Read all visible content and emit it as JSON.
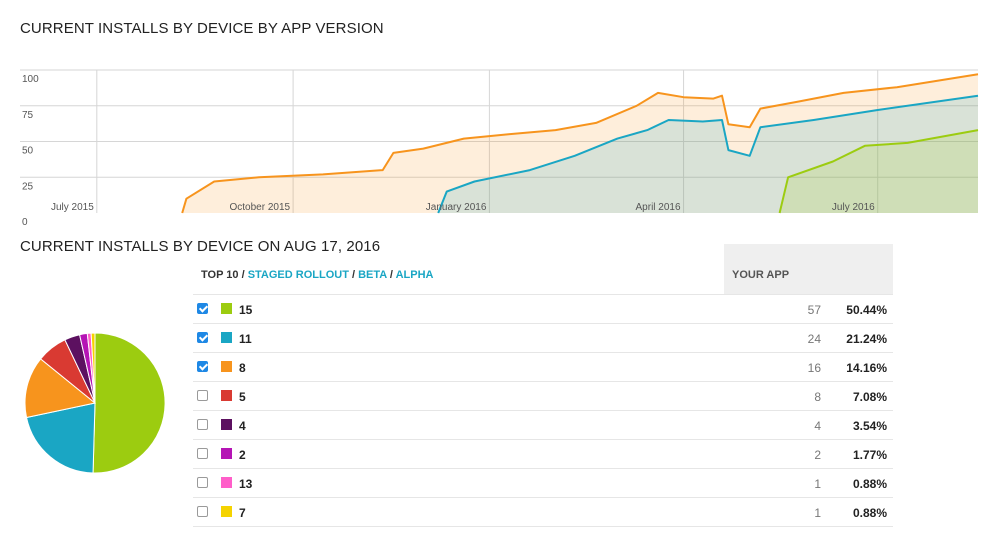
{
  "titles": {
    "chart": "CURRENT INSTALLS BY DEVICE BY APP VERSION",
    "snapshot": "CURRENT INSTALLS BY DEVICE ON AUG 17, 2016"
  },
  "colors": {
    "v15": "#9ccc10",
    "v11": "#1aa6c4",
    "v8": "#f7941d",
    "v5": "#d93a32",
    "v4": "#5c1060",
    "v2": "#b514b5",
    "v13": "#ff5ec9",
    "v7": "#f5d300"
  },
  "chart_data": [
    {
      "type": "area",
      "title": "CURRENT INSTALLS BY DEVICE BY APP VERSION",
      "stacked": false,
      "ylim": [
        0,
        100
      ],
      "yticks": [
        "100",
        "75",
        "50",
        "25",
        "0"
      ],
      "yticks_values": [
        100,
        75,
        50,
        25,
        0
      ],
      "xticks": [
        "July 2015",
        "October 2015",
        "January 2016",
        "April 2016",
        "July 2016"
      ],
      "x_range": [
        "2015-05-26",
        "2016-08-17"
      ],
      "xticks_dates": [
        "2015-07-01",
        "2015-10-01",
        "2016-01-01",
        "2016-04-01",
        "2016-07-01"
      ],
      "series": [
        {
          "name": "8",
          "color_key": "v8",
          "points": [
            [
              "2015-08-10",
              0
            ],
            [
              "2015-08-12",
              10
            ],
            [
              "2015-08-25",
              22
            ],
            [
              "2015-09-15",
              25
            ],
            [
              "2015-10-15",
              27
            ],
            [
              "2015-11-12",
              30
            ],
            [
              "2015-11-17",
              42
            ],
            [
              "2015-12-01",
              45
            ],
            [
              "2015-12-20",
              52
            ],
            [
              "2016-01-10",
              55
            ],
            [
              "2016-02-01",
              58
            ],
            [
              "2016-02-20",
              63
            ],
            [
              "2016-03-10",
              75
            ],
            [
              "2016-03-20",
              84
            ],
            [
              "2016-04-01",
              81
            ],
            [
              "2016-04-15",
              80
            ],
            [
              "2016-04-19",
              82
            ],
            [
              "2016-04-22",
              62
            ],
            [
              "2016-05-02",
              60
            ],
            [
              "2016-05-07",
              73
            ],
            [
              "2016-05-25",
              78
            ],
            [
              "2016-06-15",
              84
            ],
            [
              "2016-07-10",
              88
            ],
            [
              "2016-08-17",
              97
            ]
          ]
        },
        {
          "name": "11",
          "color_key": "v11",
          "points": [
            [
              "2015-12-08",
              0
            ],
            [
              "2015-12-12",
              15
            ],
            [
              "2015-12-25",
              22
            ],
            [
              "2016-01-20",
              30
            ],
            [
              "2016-02-10",
              40
            ],
            [
              "2016-03-01",
              52
            ],
            [
              "2016-03-15",
              58
            ],
            [
              "2016-03-25",
              65
            ],
            [
              "2016-04-10",
              64
            ],
            [
              "2016-04-19",
              65
            ],
            [
              "2016-04-22",
              44
            ],
            [
              "2016-05-02",
              40
            ],
            [
              "2016-05-07",
              60
            ],
            [
              "2016-06-01",
              65
            ],
            [
              "2016-07-01",
              72
            ],
            [
              "2016-08-17",
              82
            ]
          ]
        },
        {
          "name": "15",
          "color_key": "v15",
          "points": [
            [
              "2016-05-16",
              0
            ],
            [
              "2016-05-20",
              25
            ],
            [
              "2016-06-10",
              36
            ],
            [
              "2016-06-25",
              47
            ],
            [
              "2016-07-15",
              49
            ],
            [
              "2016-08-17",
              58
            ]
          ]
        }
      ]
    },
    {
      "type": "pie",
      "title": "CURRENT INSTALLS BY DEVICE ON AUG 17, 2016",
      "tabs": {
        "top10": "TOP 10",
        "sep": " / ",
        "staged": "STAGED ROLLOUT",
        "beta": "BETA",
        "alpha": "ALPHA"
      },
      "column_header": "YOUR APP",
      "rows": [
        {
          "label": "15",
          "count": "57",
          "percent": "50.44%",
          "value": 50.44,
          "color_key": "v15",
          "checked": true
        },
        {
          "label": "11",
          "count": "24",
          "percent": "21.24%",
          "value": 21.24,
          "color_key": "v11",
          "checked": true
        },
        {
          "label": "8",
          "count": "16",
          "percent": "14.16%",
          "value": 14.16,
          "color_key": "v8",
          "checked": true
        },
        {
          "label": "5",
          "count": "8",
          "percent": "7.08%",
          "value": 7.08,
          "color_key": "v5",
          "checked": false
        },
        {
          "label": "4",
          "count": "4",
          "percent": "3.54%",
          "value": 3.54,
          "color_key": "v4",
          "checked": false
        },
        {
          "label": "2",
          "count": "2",
          "percent": "1.77%",
          "value": 1.77,
          "color_key": "v2",
          "checked": false
        },
        {
          "label": "13",
          "count": "1",
          "percent": "0.88%",
          "value": 0.88,
          "color_key": "v13",
          "checked": false
        },
        {
          "label": "7",
          "count": "1",
          "percent": "0.88%",
          "value": 0.88,
          "color_key": "v7",
          "checked": false
        }
      ]
    }
  ]
}
